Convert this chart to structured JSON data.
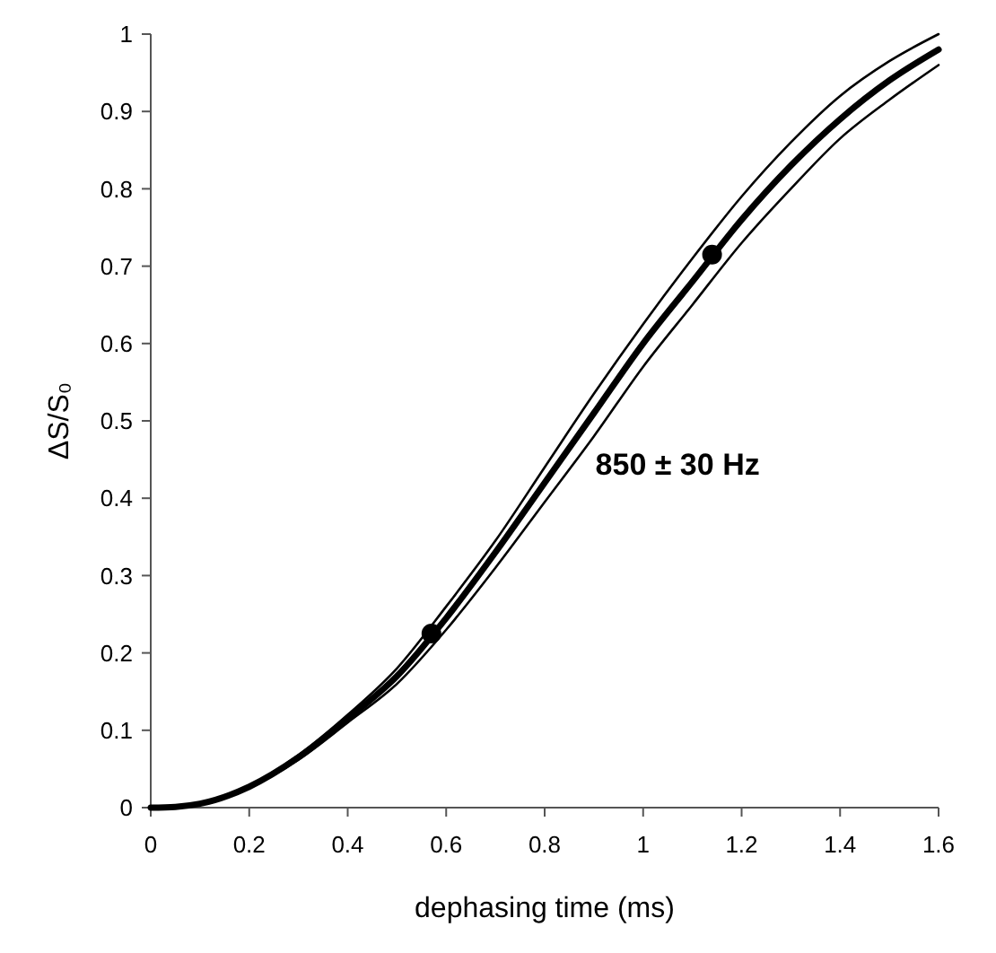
{
  "chart_data": {
    "type": "line",
    "xlabel": "dephasing time (ms)",
    "ylabel": "ΔS/S₀",
    "xlim": [
      0,
      1.6
    ],
    "ylim": [
      0,
      1
    ],
    "xticks": [
      0,
      0.2,
      0.4,
      0.6,
      0.8,
      1,
      1.2,
      1.4,
      1.6
    ],
    "yticks": [
      0,
      0.1,
      0.2,
      0.3,
      0.4,
      0.5,
      0.6,
      0.7,
      0.8,
      0.9,
      1
    ],
    "annotations": [
      "850 ± 30 Hz"
    ],
    "x": [
      0,
      0.05,
      0.1,
      0.2,
      0.3,
      0.4,
      0.5,
      0.6,
      0.7,
      0.8,
      0.9,
      1.0,
      1.1,
      1.2,
      1.3,
      1.4,
      1.5,
      1.6
    ],
    "series": [
      {
        "color": "#000000",
        "values": [
          0,
          0.001,
          0.006,
          0.028,
          0.068,
          0.12,
          0.18,
          0.26,
          0.345,
          0.44,
          0.535,
          0.625,
          0.71,
          0.79,
          0.86,
          0.92,
          0.965,
          1.0
        ]
      },
      {
        "color": "#000000",
        "values": [
          0,
          0.001,
          0.005,
          0.027,
          0.065,
          0.115,
          0.17,
          0.245,
          0.33,
          0.42,
          0.51,
          0.6,
          0.68,
          0.76,
          0.83,
          0.89,
          0.94,
          0.98
        ]
      },
      {
        "color": "#000000",
        "values": [
          0,
          0.001,
          0.004,
          0.026,
          0.062,
          0.11,
          0.16,
          0.23,
          0.31,
          0.395,
          0.48,
          0.57,
          0.65,
          0.73,
          0.8,
          0.865,
          0.915,
          0.96
        ]
      },
      {
        "type": "scatter",
        "color": "#000000",
        "marker": "circle",
        "x": [
          0.57,
          1.14
        ],
        "values": [
          0.225,
          0.715
        ]
      }
    ]
  }
}
